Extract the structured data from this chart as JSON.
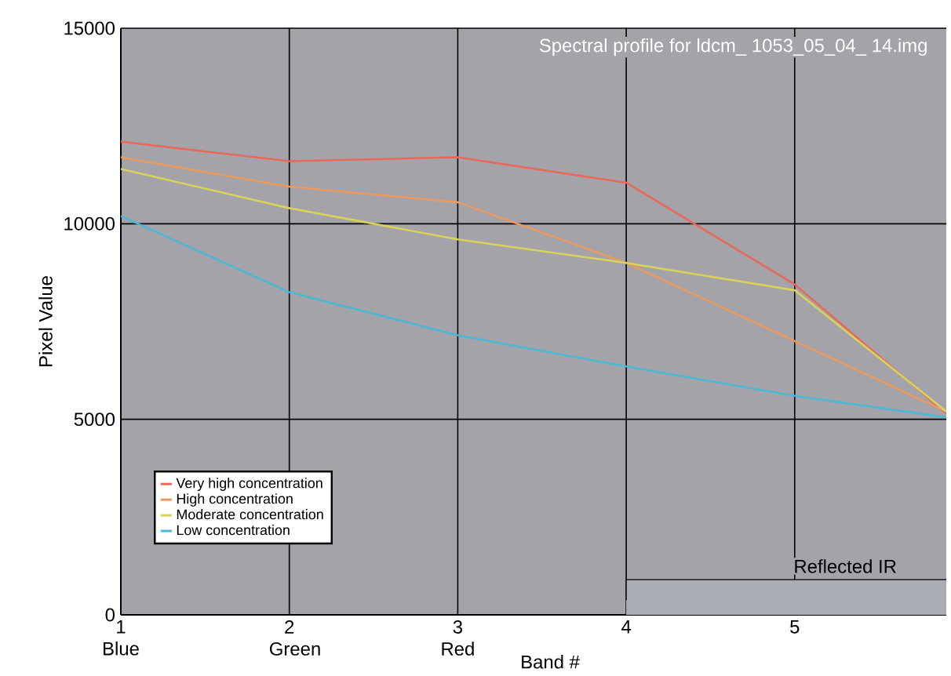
{
  "chart_data": {
    "type": "line",
    "title": "Spectral profile for ldcm_ 1053_05_04_ 14.img",
    "xlabel": "Band #",
    "ylabel": "Pixel Value",
    "x": [
      1,
      2,
      3,
      4,
      5,
      5.9
    ],
    "series": [
      {
        "name": "Very high concentration",
        "color": "#e8685a",
        "values": [
          12100,
          11600,
          11700,
          11050,
          8450,
          5150
        ]
      },
      {
        "name": "High concentration",
        "color": "#eb9a5e",
        "values": [
          11700,
          10950,
          10550,
          9000,
          7000,
          5200
        ]
      },
      {
        "name": "Moderate concentration",
        "color": "#d8d25a",
        "values": [
          11400,
          10400,
          9600,
          9000,
          8300,
          5200
        ]
      },
      {
        "name": "Low concentration",
        "color": "#4cb8d4",
        "values": [
          10200,
          8250,
          7150,
          6350,
          5600,
          5050
        ]
      }
    ],
    "xlim": [
      1,
      5.9
    ],
    "ylim": [
      0,
      15000
    ],
    "xticks": [
      {
        "value": 1,
        "label": "1 Blue"
      },
      {
        "value": 2,
        "label": "2 Green"
      },
      {
        "value": 3,
        "label": "3 Red"
      },
      4,
      5
    ],
    "yticks": [
      0,
      5000,
      10000,
      15000
    ],
    "bands": [
      {
        "axis": "x",
        "from": 4,
        "to": 5.9,
        "label": "Reflected IR",
        "color": "#abadb4"
      }
    ],
    "grid": true,
    "legend": "bottom left",
    "marker": "none",
    "line_style": "solid"
  }
}
